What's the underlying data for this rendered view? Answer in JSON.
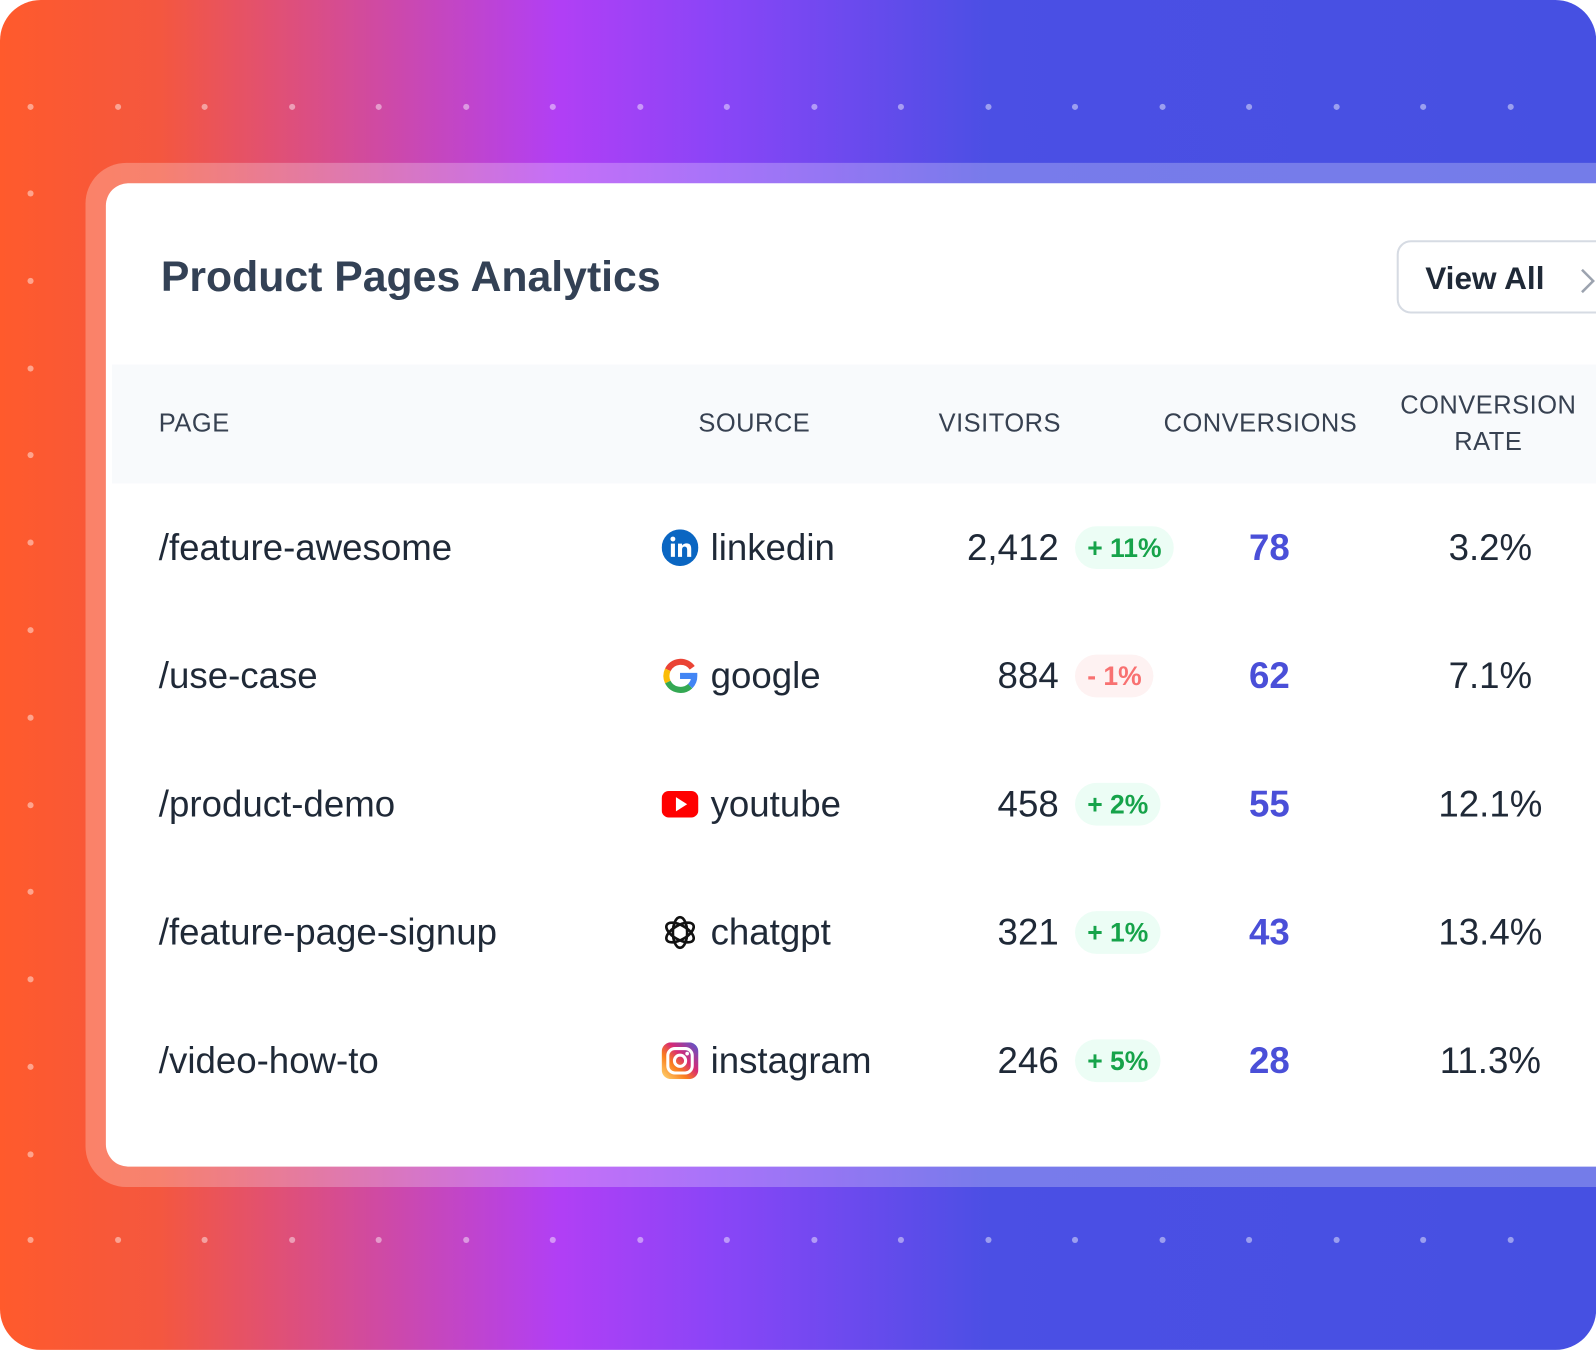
{
  "header": {
    "title": "Product Pages Analytics",
    "button": "View All"
  },
  "table": {
    "columns": [
      "PAGE",
      "SOURCE",
      "VISITORS",
      "CONVERSIONS",
      "CONVERSION RATE"
    ],
    "rows": [
      [
        "/feature-awesome",
        "linkedin",
        "2,412",
        "+ 11%",
        "78",
        "3.2%"
      ],
      [
        "/use-case",
        "google",
        "884",
        "- 1%",
        "62",
        "7.1%"
      ],
      [
        "/product-demo",
        "youtube",
        "458",
        "+ 2%",
        "55",
        "12.1%"
      ],
      [
        "/feature-page-signup",
        "chatgpt",
        "321",
        "+ 1%",
        "43",
        "13.4%"
      ],
      [
        "/video-how-to",
        "instagram",
        "246",
        "+ 5%",
        "28",
        "11.3%"
      ]
    ]
  }
}
